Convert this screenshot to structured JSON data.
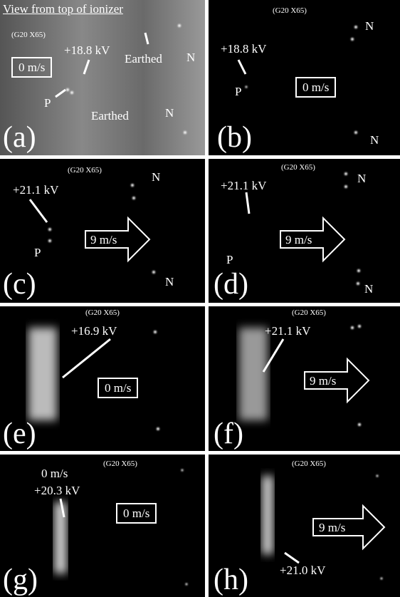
{
  "panels": [
    {
      "letter": "(a)",
      "title": "View from top of ionizer",
      "magnification": "(G20 X65)",
      "texts": [
        "+18.8 kV",
        "0 m/s",
        "Earthed",
        "N",
        "P",
        "Earthed",
        "N"
      ]
    },
    {
      "letter": "(b)",
      "magnification": "(G20 X65)",
      "texts": [
        "N",
        "+18.8 kV",
        "P",
        "0 m/s",
        "N"
      ]
    },
    {
      "letter": "(c)",
      "magnification": "(G20 X65)",
      "texts": [
        "N",
        "+21.1 kV",
        "P",
        "9 m/s",
        "N"
      ]
    },
    {
      "letter": "(d)",
      "magnification": "(G20 X65)",
      "texts": [
        "N",
        "+21.1 kV",
        "P",
        "9 m/s",
        "N"
      ]
    },
    {
      "letter": "(e)",
      "magnification": "(G20 X65)",
      "texts": [
        "+16.9 kV",
        "0 m/s"
      ]
    },
    {
      "letter": "(f)",
      "magnification": "(G20 X65)",
      "texts": [
        "+21.1 kV",
        "9 m/s"
      ]
    },
    {
      "letter": "(g)",
      "magnification": "(G20 X65)",
      "texts": [
        "0 m/s",
        "+20.3 kV",
        "0 m/s"
      ]
    },
    {
      "letter": "(h)",
      "magnification": "(G20 X65)",
      "texts": [
        "9 m/s",
        "+21.0 kV"
      ]
    }
  ]
}
